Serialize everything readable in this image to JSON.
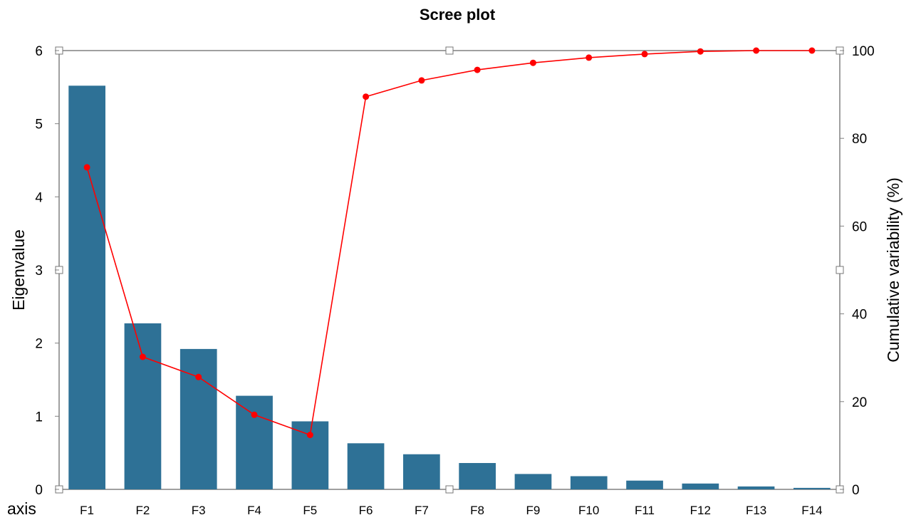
{
  "chart_data": {
    "type": "bar",
    "title": "Scree plot",
    "xlabel": "axis",
    "ylabel": "Eigenvalue",
    "y2label": "Cumulative variability (%)",
    "categories": [
      "F1",
      "F2",
      "F3",
      "F4",
      "F5",
      "F6",
      "F7",
      "F8",
      "F9",
      "F10",
      "F11",
      "F12",
      "F13",
      "F14"
    ],
    "ylim": [
      0,
      6
    ],
    "yticks": [
      "0",
      "1",
      "2",
      "3",
      "4",
      "5",
      "6"
    ],
    "y2lim": [
      0,
      100
    ],
    "y2ticks": [
      "0",
      "20",
      "40",
      "60",
      "80",
      "100"
    ],
    "series": [
      {
        "type": "bar",
        "axis": "left",
        "color": "#2e7196",
        "values": [
          5.52,
          2.27,
          1.92,
          1.28,
          0.93,
          0.63,
          0.48,
          0.36,
          0.21,
          0.18,
          0.12,
          0.08,
          0.04,
          0.02
        ]
      },
      {
        "type": "line",
        "axis": "right",
        "color": "#ff0000",
        "values": [
          73.4,
          30.2,
          25.6,
          17.0,
          12.4,
          89.5,
          93.2,
          95.6,
          97.2,
          98.4,
          99.2,
          99.8,
          100.0,
          100.0
        ]
      }
    ],
    "grid": false,
    "legend": "none"
  }
}
